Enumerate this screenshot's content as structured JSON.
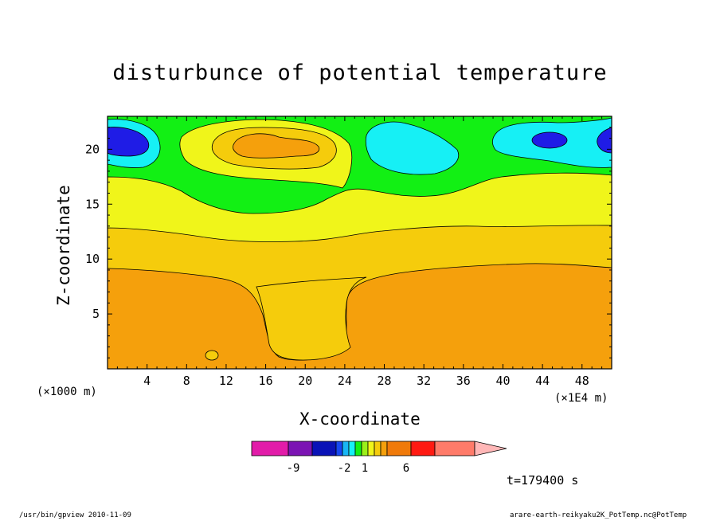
{
  "chart_data": {
    "type": "heatmap",
    "title": "disturbunce of potential temperature",
    "xlabel": "X-coordinate",
    "ylabel": "Z-coordinate",
    "x_unit_left": "(×1000 m)",
    "x_unit_right": "(×1E4 m)",
    "xlim": [
      0,
      51
    ],
    "ylim": [
      0,
      23
    ],
    "x_ticks": [
      4,
      8,
      12,
      16,
      20,
      24,
      28,
      32,
      36,
      40,
      44,
      48
    ],
    "y_ticks": [
      5,
      10,
      15,
      20
    ],
    "grid": false,
    "colorbar": {
      "colors": [
        "#e21ca9",
        "#7b14b3",
        "#0a13b7",
        "#1648f2",
        "#18b6f5",
        "#16f0f5",
        "#12f014",
        "#9bf01a",
        "#f0f51a",
        "#f5cc0c",
        "#f5a00c",
        "#f07a0a",
        "#ff1a12",
        "#ff7b6a",
        "#ffb7b7"
      ],
      "tick_labels": [
        "-9",
        "-2",
        "1",
        "6"
      ]
    },
    "regions": [
      {
        "level": "deep blue",
        "color": "#1f1ce6",
        "location": "x 0-4, z 19-22 and x 43-46, z ~20.5"
      },
      {
        "level": "cyan",
        "color": "#16f0f5",
        "location": "x 0-5, z 18.5-23; x 26-35, z 17.5-22; x 39-51, z 18.5-22"
      },
      {
        "level": "green",
        "color": "#12f014",
        "location": "z 17-23 band"
      },
      {
        "level": "yellow",
        "color": "#f0f51a",
        "location": "z 12.5-18, rising to ~22 near x 8-24"
      },
      {
        "level": "gold",
        "color": "#f5cc0c",
        "location": "z 9-13, plume down to z ~1 near x 16-24"
      },
      {
        "level": "orange",
        "color": "#f5a00c",
        "location": "z 0-9 and core near x 15-21, z 20"
      }
    ]
  },
  "text": {
    "timestamp": "t=179400 s",
    "footer_left": "/usr/bin/gpview  2010-11-09",
    "footer_right": "arare-earth-reikyaku2K_PotTemp.nc@PotTemp"
  }
}
